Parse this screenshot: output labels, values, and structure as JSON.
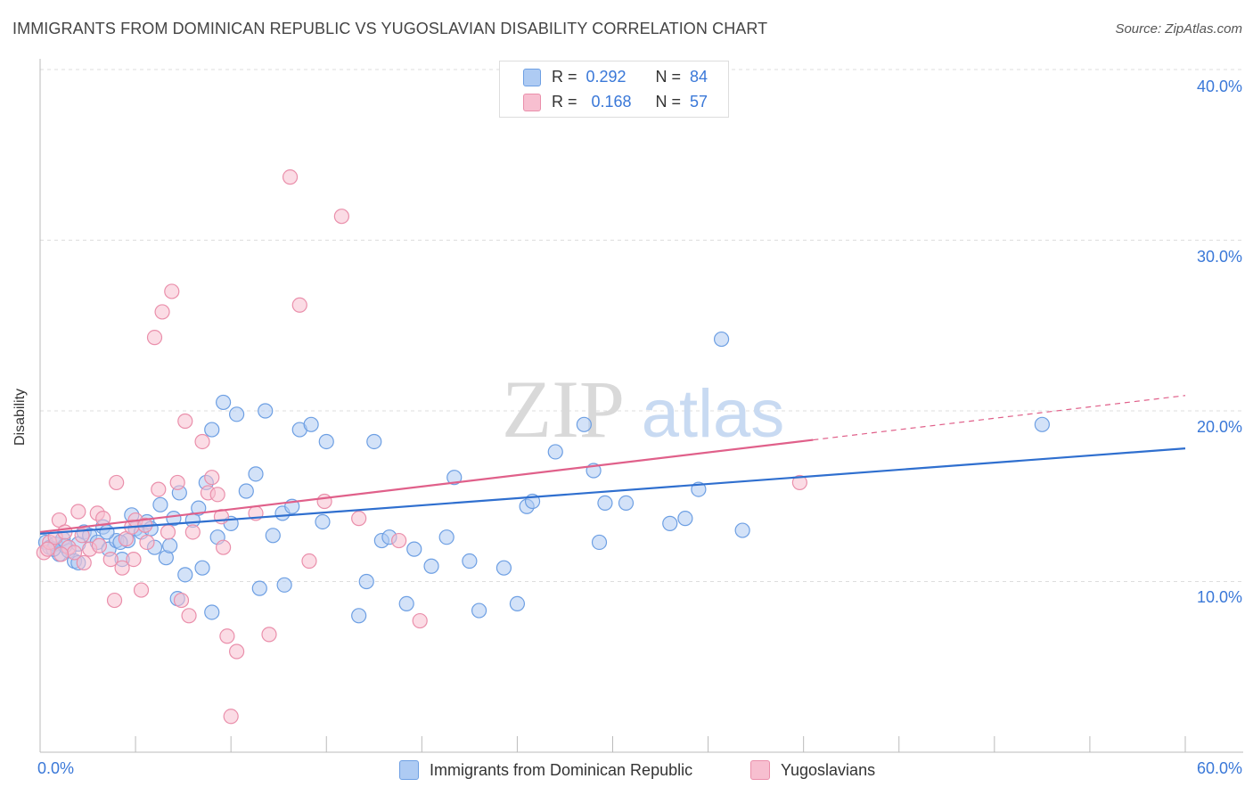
{
  "title": "IMMIGRANTS FROM DOMINICAN REPUBLIC VS YUGOSLAVIAN DISABILITY CORRELATION CHART",
  "source": "Source: ZipAtlas.com",
  "watermark": {
    "zip": "ZIP",
    "atlas": "atlas"
  },
  "legend_top": {
    "series1": {
      "r_label": "R =",
      "r_value": "0.292",
      "n_label": "N =",
      "n_value": "84"
    },
    "series2": {
      "r_label": "R =",
      "r_value": "0.168",
      "n_label": "N =",
      "n_value": "57"
    }
  },
  "colors": {
    "blue_fill": "#aecbf3",
    "blue_stroke": "#6d9fe3",
    "blue_line": "#2f6fcf",
    "pink_fill": "#f7bfd0",
    "pink_stroke": "#ea8fab",
    "pink_line": "#e0608a",
    "axis_text": "#3a78d8",
    "grid": "#dddddd"
  },
  "chart_data": {
    "type": "scatter",
    "title": "IMMIGRANTS FROM DOMINICAN REPUBLIC VS YUGOSLAVIAN DISABILITY CORRELATION CHART",
    "xlabel": "",
    "ylabel": "Disability",
    "xlim": [
      0,
      60
    ],
    "ylim": [
      0,
      40
    ],
    "x_tick_labels": [
      "0.0%",
      "60.0%"
    ],
    "y_tick_labels": [
      "10.0%",
      "20.0%",
      "30.0%",
      "40.0%"
    ],
    "y_ticks": [
      10,
      20,
      30,
      40
    ],
    "grid": true,
    "legend_position": "bottom",
    "series": [
      {
        "name": "Immigrants from Dominican Republic",
        "color": "#6d9fe3",
        "trend": {
          "x": [
            0,
            60
          ],
          "y": [
            12.8,
            17.8
          ],
          "solid_until": 60
        },
        "points": [
          [
            0.3,
            12.3
          ],
          [
            0.5,
            12.0
          ],
          [
            0.8,
            12.2
          ],
          [
            1.0,
            11.6
          ],
          [
            1.2,
            12.5
          ],
          [
            1.5,
            11.8
          ],
          [
            1.8,
            11.2
          ],
          [
            2.0,
            12.2
          ],
          [
            2.3,
            12.9
          ],
          [
            2.6,
            12.7
          ],
          [
            3.0,
            12.3
          ],
          [
            3.3,
            13.2
          ],
          [
            3.6,
            11.9
          ],
          [
            4.0,
            12.4
          ],
          [
            4.3,
            11.3
          ],
          [
            4.6,
            12.4
          ],
          [
            4.8,
            13.9
          ],
          [
            5.0,
            13.1
          ],
          [
            5.3,
            12.9
          ],
          [
            5.6,
            13.5
          ],
          [
            6.0,
            12.0
          ],
          [
            6.3,
            14.5
          ],
          [
            6.6,
            11.4
          ],
          [
            7.0,
            13.7
          ],
          [
            7.3,
            15.2
          ],
          [
            7.6,
            10.4
          ],
          [
            8.0,
            13.6
          ],
          [
            8.3,
            14.3
          ],
          [
            8.7,
            15.8
          ],
          [
            9.0,
            18.9
          ],
          [
            9.3,
            12.6
          ],
          [
            9.6,
            20.5
          ],
          [
            10.0,
            13.4
          ],
          [
            10.3,
            19.8
          ],
          [
            10.8,
            15.3
          ],
          [
            11.3,
            16.3
          ],
          [
            11.8,
            20.0
          ],
          [
            12.2,
            12.7
          ],
          [
            12.7,
            14.0
          ],
          [
            13.2,
            14.4
          ],
          [
            13.6,
            18.9
          ],
          [
            14.2,
            19.2
          ],
          [
            14.8,
            13.5
          ],
          [
            15.0,
            18.2
          ],
          [
            16.7,
            8.0
          ],
          [
            17.1,
            10.0
          ],
          [
            17.5,
            18.2
          ],
          [
            17.9,
            12.4
          ],
          [
            18.3,
            12.6
          ],
          [
            19.2,
            8.7
          ],
          [
            19.6,
            11.9
          ],
          [
            20.5,
            10.9
          ],
          [
            21.3,
            12.6
          ],
          [
            21.7,
            16.1
          ],
          [
            22.5,
            11.2
          ],
          [
            23.0,
            8.3
          ],
          [
            24.3,
            10.8
          ],
          [
            25.0,
            8.7
          ],
          [
            25.5,
            14.4
          ],
          [
            25.8,
            14.7
          ],
          [
            27.0,
            17.6
          ],
          [
            28.5,
            19.2
          ],
          [
            29.0,
            16.5
          ],
          [
            29.3,
            12.3
          ],
          [
            29.6,
            14.6
          ],
          [
            30.7,
            14.6
          ],
          [
            33.0,
            13.4
          ],
          [
            33.8,
            13.7
          ],
          [
            34.5,
            15.4
          ],
          [
            35.7,
            24.2
          ],
          [
            36.8,
            13.0
          ],
          [
            52.5,
            19.2
          ],
          [
            7.2,
            9.0
          ],
          [
            9.0,
            8.2
          ],
          [
            11.5,
            9.6
          ],
          [
            12.8,
            9.8
          ],
          [
            4.2,
            12.3
          ],
          [
            2.0,
            11.1
          ],
          [
            3.5,
            12.9
          ],
          [
            5.8,
            13.1
          ],
          [
            1.3,
            12.1
          ],
          [
            0.7,
            11.9
          ],
          [
            8.5,
            10.8
          ],
          [
            6.8,
            12.1
          ]
        ]
      },
      {
        "name": "Yugoslavians",
        "color": "#ea8fab",
        "trend": {
          "x": [
            0,
            60
          ],
          "y": [
            12.9,
            20.9
          ],
          "solid_until": 40.5
        },
        "points": [
          [
            0.2,
            11.7
          ],
          [
            0.5,
            12.3
          ],
          [
            0.8,
            12.6
          ],
          [
            1.0,
            13.6
          ],
          [
            1.3,
            12.9
          ],
          [
            1.5,
            12.0
          ],
          [
            1.8,
            11.7
          ],
          [
            2.0,
            14.1
          ],
          [
            2.3,
            11.1
          ],
          [
            2.6,
            11.9
          ],
          [
            3.0,
            14.0
          ],
          [
            3.3,
            13.7
          ],
          [
            3.7,
            11.3
          ],
          [
            3.9,
            8.9
          ],
          [
            4.0,
            15.8
          ],
          [
            4.3,
            10.8
          ],
          [
            4.5,
            12.5
          ],
          [
            4.8,
            13.2
          ],
          [
            5.0,
            13.6
          ],
          [
            5.3,
            9.5
          ],
          [
            5.6,
            12.3
          ],
          [
            6.0,
            24.3
          ],
          [
            6.2,
            15.4
          ],
          [
            6.4,
            25.8
          ],
          [
            6.7,
            12.9
          ],
          [
            6.9,
            27.0
          ],
          [
            7.2,
            15.8
          ],
          [
            7.4,
            8.9
          ],
          [
            7.6,
            19.4
          ],
          [
            7.8,
            8.0
          ],
          [
            8.0,
            12.9
          ],
          [
            8.5,
            18.2
          ],
          [
            8.8,
            15.2
          ],
          [
            9.0,
            16.1
          ],
          [
            9.3,
            15.1
          ],
          [
            9.6,
            12.0
          ],
          [
            9.8,
            6.8
          ],
          [
            10.0,
            2.1
          ],
          [
            10.3,
            5.9
          ],
          [
            11.3,
            14.0
          ],
          [
            12.0,
            6.9
          ],
          [
            13.1,
            33.7
          ],
          [
            13.6,
            26.2
          ],
          [
            14.1,
            11.2
          ],
          [
            14.9,
            14.7
          ],
          [
            15.8,
            31.4
          ],
          [
            16.7,
            13.7
          ],
          [
            18.8,
            12.4
          ],
          [
            19.9,
            7.7
          ],
          [
            39.8,
            15.8
          ],
          [
            0.4,
            11.9
          ],
          [
            1.1,
            11.6
          ],
          [
            2.2,
            12.7
          ],
          [
            3.1,
            12.1
          ],
          [
            4.9,
            11.3
          ],
          [
            5.5,
            13.3
          ],
          [
            9.5,
            13.8
          ]
        ]
      }
    ]
  }
}
